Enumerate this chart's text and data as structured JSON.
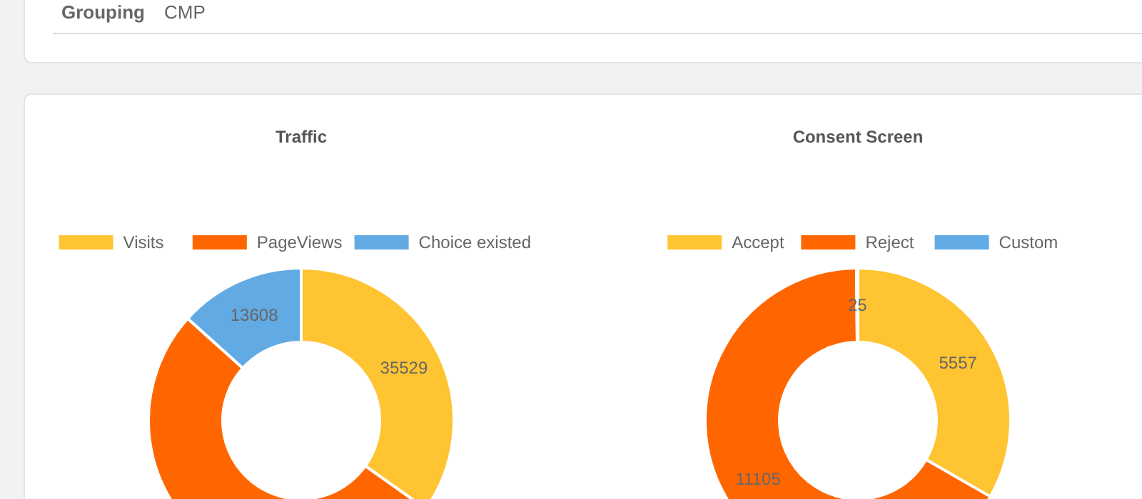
{
  "chart_data": [
    {
      "type": "other",
      "annotations": [
        "Grouping",
        "CMP"
      ]
    },
    {
      "type": "donut",
      "title": "Traffic",
      "categories": [
        "Visits",
        "PageViews",
        "Choice existed"
      ],
      "values": [
        35529,
        52900,
        13608
      ],
      "colors": [
        "#ffc431",
        "#ff6600",
        "#62aae3"
      ],
      "value_labels": [
        "35529",
        null,
        "13608"
      ],
      "legend": "top"
    },
    {
      "type": "donut",
      "title": "Consent Screen",
      "categories": [
        "Accept",
        "Reject",
        "Custom"
      ],
      "values": [
        5557,
        11105,
        25
      ],
      "colors": [
        "#ffc431",
        "#ff6600",
        "#62aae3"
      ],
      "data_labels": true,
      "legend": "top"
    }
  ]
}
